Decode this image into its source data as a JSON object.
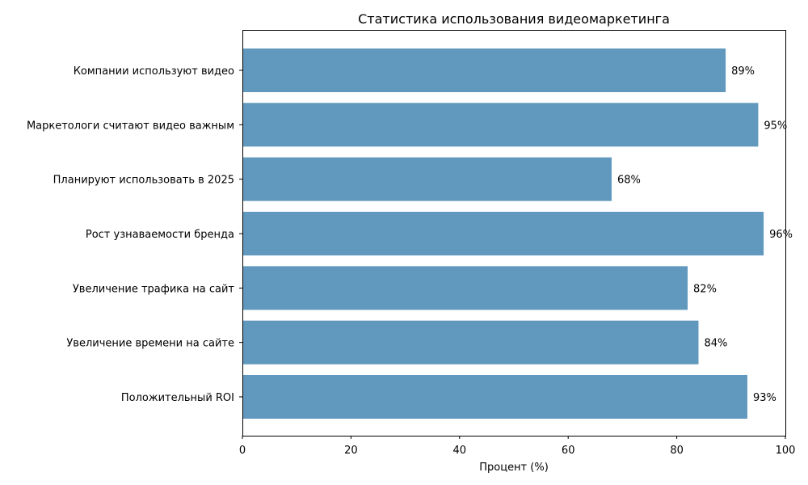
{
  "chart_data": {
    "type": "bar",
    "orientation": "horizontal",
    "title": "Статистика использования видеомаркетинга",
    "xlabel": "Процент (%)",
    "ylabel": "",
    "xlim": [
      0,
      100
    ],
    "x_ticks": [
      0,
      20,
      40,
      60,
      80,
      100
    ],
    "grid": false,
    "categories": [
      "Компании используют видео",
      "Маркетологи считают видео важным",
      "Планируют использовать в 2025",
      "Рост узнаваемости бренда",
      "Увеличение трафика на сайт",
      "Увеличение времени на сайте",
      "Положительный ROI"
    ],
    "values": [
      89,
      95,
      68,
      96,
      82,
      84,
      93
    ],
    "value_labels": [
      "89%",
      "95%",
      "68%",
      "96%",
      "82%",
      "84%",
      "93%"
    ],
    "bar_color": "#6198bd"
  }
}
